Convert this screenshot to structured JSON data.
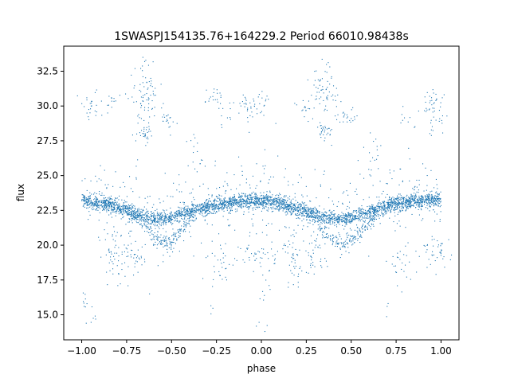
{
  "chart_data": {
    "type": "scatter",
    "title": "1SWASPJ154135.76+164229.2 Period 66010.98438s",
    "xlabel": "phase",
    "ylabel": "flux",
    "xlim": [
      -1.1,
      1.1
    ],
    "ylim": [
      13.2,
      34.3
    ],
    "xticks": [
      -1.0,
      -0.75,
      -0.5,
      -0.25,
      0.0,
      0.25,
      0.5,
      0.75,
      1.0
    ],
    "xtick_labels": [
      "−1.00",
      "−0.75",
      "−0.50",
      "−0.25",
      "0.00",
      "0.25",
      "0.50",
      "0.75",
      "1.00"
    ],
    "yticks": [
      15.0,
      17.5,
      20.0,
      22.5,
      25.0,
      27.5,
      30.0,
      32.5
    ],
    "ytick_labels": [
      "15.0",
      "17.5",
      "20.0",
      "22.5",
      "25.0",
      "27.5",
      "30.0",
      "32.5"
    ],
    "grid": false,
    "marker_color": "#1f77b4",
    "series": [
      {
        "description_values": "folded light curve, phase vs flux",
        "x": [
          -1.0,
          -0.95,
          -0.9,
          -0.85,
          -0.8,
          -0.75,
          -0.7,
          -0.65,
          -0.6,
          -0.55,
          -0.5,
          -0.45,
          -0.4,
          -0.35,
          -0.3,
          -0.25,
          -0.2,
          -0.15,
          -0.1,
          -0.05,
          0.0,
          0.05,
          0.1,
          0.15,
          0.2,
          0.25,
          0.3,
          0.35,
          0.4,
          0.45,
          0.5,
          0.55,
          0.6,
          0.65,
          0.7,
          0.75,
          0.8,
          0.85,
          0.9,
          0.95,
          1.0
        ],
        "y_upper_branch": [
          23.2,
          23.1,
          23.0,
          22.9,
          22.7,
          22.5,
          22.3,
          22.1,
          21.9,
          21.9,
          22.0,
          22.2,
          22.4,
          22.6,
          22.8,
          22.9,
          23.0,
          23.1,
          23.2,
          23.2,
          23.2,
          23.1,
          23.0,
          22.8,
          22.6,
          22.4,
          22.2,
          22.0,
          21.9,
          21.9,
          22.0,
          22.2,
          22.4,
          22.6,
          22.8,
          23.0,
          23.1,
          23.2,
          23.2,
          23.3,
          23.3
        ],
        "y_lower_branch": [
          23.2,
          23.1,
          23.0,
          22.9,
          22.7,
          22.5,
          22.1,
          21.4,
          20.6,
          20.1,
          20.3,
          21.0,
          21.8,
          22.3,
          22.7,
          22.9,
          23.0,
          23.1,
          23.2,
          23.2,
          23.2,
          23.1,
          23.0,
          22.8,
          22.6,
          22.3,
          21.8,
          21.0,
          20.4,
          20.0,
          20.3,
          21.0,
          21.8,
          22.4,
          22.8,
          23.0,
          23.1,
          23.2,
          23.2,
          23.3,
          23.3
        ]
      }
    ]
  }
}
